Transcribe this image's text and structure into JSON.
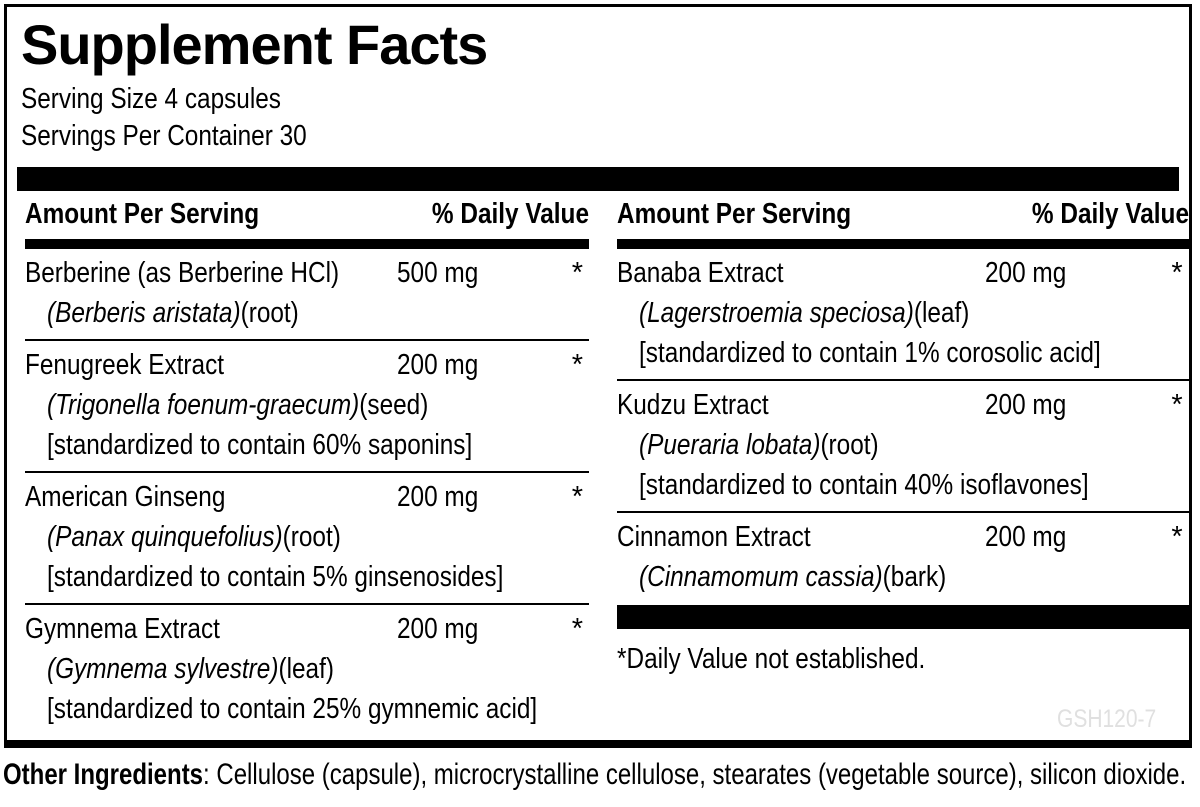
{
  "title": "Supplement Facts",
  "serving": {
    "size_label": "Serving Size 4 capsules",
    "per_container_label": "Servings Per Container 30"
  },
  "columns": [
    {
      "header": {
        "amount_label": "Amount Per Serving",
        "dv_label": "% Daily Value"
      },
      "rows": [
        {
          "name": "Berberine (as Berberine HCl)",
          "amount": "500 mg",
          "dv": "*",
          "botanical": "(Berberis aristata)",
          "part": "(root)"
        },
        {
          "name": "Fenugreek Extract",
          "amount": "200 mg",
          "dv": "*",
          "botanical": "(Trigonella foenum-graecum)",
          "part": "(seed)",
          "standardized": "[standardized to contain 60% saponins]"
        },
        {
          "name": "American Ginseng",
          "amount": "200 mg",
          "dv": "*",
          "botanical": "(Panax quinquefolius)",
          "part": "(root)",
          "standardized": "[standardized to contain 5% ginsenosides]"
        },
        {
          "name": "Gymnema Extract",
          "amount": "200 mg",
          "dv": "*",
          "botanical": "(Gymnema sylvestre)",
          "part": "(leaf)",
          "standardized": "[standardized to contain 25% gymnemic acid]"
        }
      ]
    },
    {
      "header": {
        "amount_label": "Amount Per Serving",
        "dv_label": "% Daily Value"
      },
      "rows": [
        {
          "name": "Banaba Extract",
          "amount": "200 mg",
          "dv": "*",
          "botanical": "(Lagerstroemia speciosa)",
          "part": "(leaf)",
          "standardized": "[standardized to contain 1% corosolic acid]"
        },
        {
          "name": "Kudzu Extract",
          "amount": "200 mg",
          "dv": "*",
          "botanical": "(Pueraria lobata)",
          "part": "(root)",
          "standardized": "[standardized to contain 40% isoflavones]"
        },
        {
          "name": "Cinnamon Extract",
          "amount": "200 mg",
          "dv": "*",
          "botanical": "(Cinnamomum cassia)",
          "part": "(bark)"
        }
      ],
      "footnote": "*Daily Value not established."
    }
  ],
  "watermark": "GSH120-7",
  "other_ingredients": {
    "label": "Other Ingredients",
    "text": ": Cellulose (capsule), microcrystalline cellulose, stearates (vegetable source), silicon dioxide."
  },
  "colors": {
    "text": "#000000",
    "background": "#ffffff",
    "watermark": "#e0e0e0"
  }
}
